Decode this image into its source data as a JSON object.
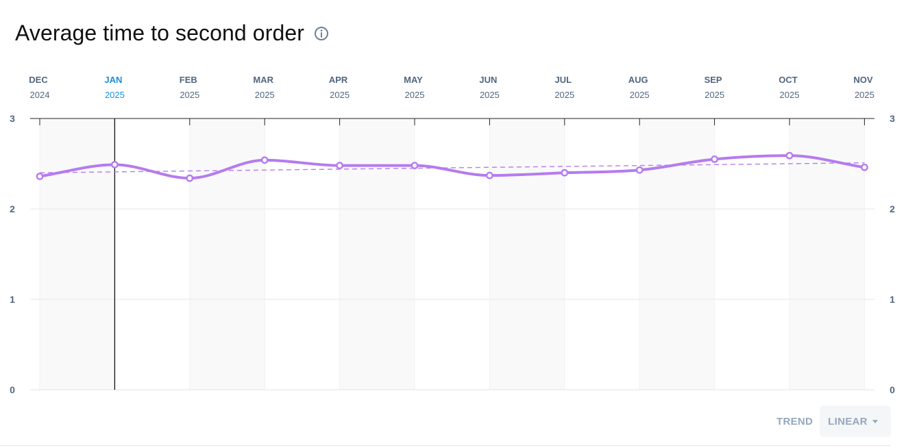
{
  "title": "Average time to second order",
  "icons": {
    "info": "info-circle-icon",
    "dropdown": "caret-down-icon"
  },
  "colors": {
    "series": "#b57bee",
    "trend": "#b57bee",
    "axis_text": "#4f6680",
    "highlight": "#1a8fe3",
    "band": "#f9f9fa"
  },
  "chart_data": {
    "type": "line",
    "x": [
      "DEC 2024",
      "JAN 2025",
      "FEB 2025",
      "MAR 2025",
      "APR 2025",
      "MAY 2025",
      "JUN 2025",
      "JUL 2025",
      "AUG 2025",
      "SEP 2025",
      "OCT 2025",
      "NOV 2025"
    ],
    "x_months": [
      "DEC",
      "JAN",
      "FEB",
      "MAR",
      "APR",
      "MAY",
      "JUN",
      "JUL",
      "AUG",
      "SEP",
      "OCT",
      "NOV"
    ],
    "x_years": [
      "2024",
      "2025",
      "2025",
      "2025",
      "2025",
      "2025",
      "2025",
      "2025",
      "2025",
      "2025",
      "2025",
      "2025"
    ],
    "highlighted_index": 1,
    "series": [
      {
        "values": [
          2.36,
          2.49,
          2.34,
          2.54,
          2.48,
          2.48,
          2.37,
          2.4,
          2.43,
          2.55,
          2.59,
          2.46
        ]
      }
    ],
    "trend": {
      "type": "linear",
      "start": 2.4,
      "end": 2.51
    },
    "ylim": [
      0,
      3
    ],
    "yticks": [
      0,
      1,
      2,
      3
    ],
    "grid": true,
    "title": "Average time to second order",
    "xlabel": "",
    "ylabel": ""
  },
  "trend_control": {
    "label": "TREND",
    "selected": "LINEAR"
  }
}
